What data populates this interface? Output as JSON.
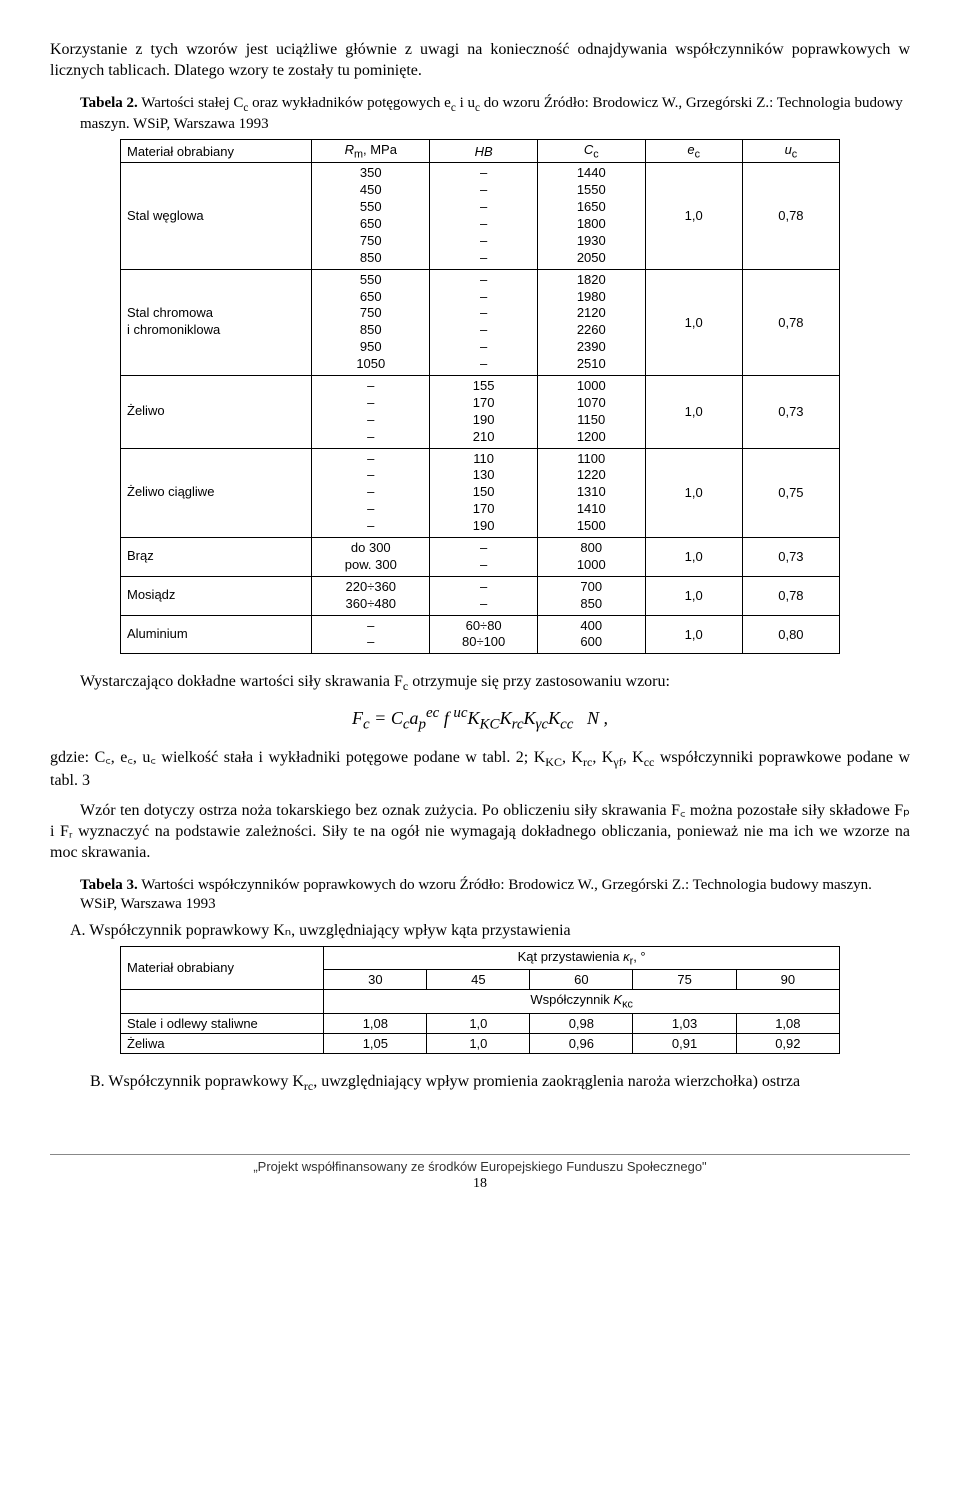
{
  "intro": "Korzystanie z tych wzorów jest uciążliwe głównie z uwagi na konieczność odnajdywania współczynników poprawkowych w licznych tablicach. Dlatego wzory te zostały tu pominięte.",
  "tab2": {
    "label_bold": "Tabela 2.",
    "label_rest": " Wartości stałej C",
    "label_rest2": " oraz wykładników potęgowych e",
    "label_rest3": " i u",
    "label_rest4": " do wzoru Źródło: Brodowicz W., Grzegórski Z.: Technologia budowy maszyn. WSiP, Warszawa 1993",
    "headers": [
      "Materiał obrabiany",
      "Rₘ, MPa",
      "HB",
      "C꜀",
      "e꜀",
      "u꜀"
    ],
    "rows": [
      {
        "mat": "Stal węglowa",
        "rm": [
          "350",
          "450",
          "550",
          "650",
          "750",
          "850"
        ],
        "hb": [
          "–",
          "–",
          "–",
          "–",
          "–",
          "–"
        ],
        "cc": [
          "1440",
          "1550",
          "1650",
          "1800",
          "1930",
          "2050"
        ],
        "ec": "1,0",
        "uc": "0,78"
      },
      {
        "mat": "Stal chromowa<br>i chromoniklowa",
        "rm": [
          "550",
          "650",
          "750",
          "850",
          "950",
          "1050"
        ],
        "hb": [
          "–",
          "–",
          "–",
          "–",
          "–",
          "–"
        ],
        "cc": [
          "1820",
          "1980",
          "2120",
          "2260",
          "2390",
          "2510"
        ],
        "ec": "1,0",
        "uc": "0,78"
      },
      {
        "mat": "Żeliwo",
        "rm": [
          "–",
          "–",
          "–",
          "–"
        ],
        "hb": [
          "155",
          "170",
          "190",
          "210"
        ],
        "cc": [
          "1000",
          "1070",
          "1150",
          "1200"
        ],
        "ec": "1,0",
        "uc": "0,73"
      },
      {
        "mat": "Żeliwo ciągliwe",
        "rm": [
          "–",
          "–",
          "–",
          "–",
          "–"
        ],
        "hb": [
          "110",
          "130",
          "150",
          "170",
          "190"
        ],
        "cc": [
          "1100",
          "1220",
          "1310",
          "1410",
          "1500"
        ],
        "ec": "1,0",
        "uc": "0,75"
      },
      {
        "mat": "Brąz",
        "rm": [
          "do 300",
          "pow. 300"
        ],
        "hb": [
          "–",
          "–"
        ],
        "cc": [
          "800",
          "1000"
        ],
        "ec": "1,0",
        "uc": "0,73"
      },
      {
        "mat": "Mosiądz",
        "rm": [
          "220÷360",
          "360÷480"
        ],
        "hb": [
          "–",
          "–"
        ],
        "cc": [
          "700",
          "850"
        ],
        "ec": "1,0",
        "uc": "0,78"
      },
      {
        "mat": "Aluminium",
        "rm": [
          "–",
          "–"
        ],
        "hb": [
          "60÷80",
          "80÷100"
        ],
        "cc": [
          "400",
          "600"
        ],
        "ec": "1,0",
        "uc": "0,80"
      }
    ]
  },
  "mid1_a": "Wystarczająco dokładne wartości siły skrawania F",
  "mid1_b": " otrzymuje się przy zastosowaniu wzoru:",
  "formula": "F<sub>c</sub> = C<sub>c</sub> a<sub>p</sub><sup>e c</sup> f <sup>u c</sup> K<sub>KC</sub> K<sub>r c</sub> K<sub>γ c</sub> K<sub>c c</sub> &nbsp; N ,",
  "mid2": "gdzie: C꜀, e꜀, u꜀ wielkość stała i wykładniki potęgowe podane w tabl. 2; K",
  "mid2b": ", K",
  "mid2c": ", K",
  "mid2d": ", K",
  "mid2e": " współczynniki poprawkowe podane w tabl. 3",
  "mid3": "Wzór ten dotyczy ostrza noża tokarskiego bez oznak zużycia. Po obliczeniu siły skrawania F꜀ można pozostałe siły składowe Fₚ i Fᵣ wyznaczyć na podstawie zależności. Siły te na ogół nie wymagają dokładnego obliczania, ponieważ nie ma ich we wzorze na moc skrawania.",
  "tab3": {
    "label_bold": "Tabela 3.",
    "label_rest": " Wartości współczynników poprawkowych do wzoru Źródło: Brodowicz W., Grzegórski Z.: Technologia budowy maszyn. WSiP, Warszawa 1993"
  },
  "sectA": "A. Współczynnik poprawkowy Kₙ, uwzględniający wpływ kąta przystawienia",
  "tableA": {
    "header_top": "Kąt przystawienia κᵣ, °",
    "col0": "Materiał obrabiany",
    "angles": [
      "30",
      "45",
      "60",
      "75",
      "90"
    ],
    "header_mid": "Współczynnik K",
    "header_mid_sub": "κc",
    "rows": [
      {
        "m": "Stale i odlewy staliwne",
        "v": [
          "1,08",
          "1,0",
          "0,98",
          "1,03",
          "1,08"
        ]
      },
      {
        "m": "Żeliwa",
        "v": [
          "1,05",
          "1,0",
          "0,96",
          "0,91",
          "0,92"
        ]
      }
    ]
  },
  "sectB": "B. Współczynnik poprawkowy K",
  "sectB_sub": "rc",
  "sectB_rest": ", uwzględniający wpływ promienia zaokrąglenia naroża wierzchołka) ostrza",
  "footer": "„Projekt współfinansowany ze środków Europejskiego Funduszu Społecznego\"",
  "page": "18"
}
